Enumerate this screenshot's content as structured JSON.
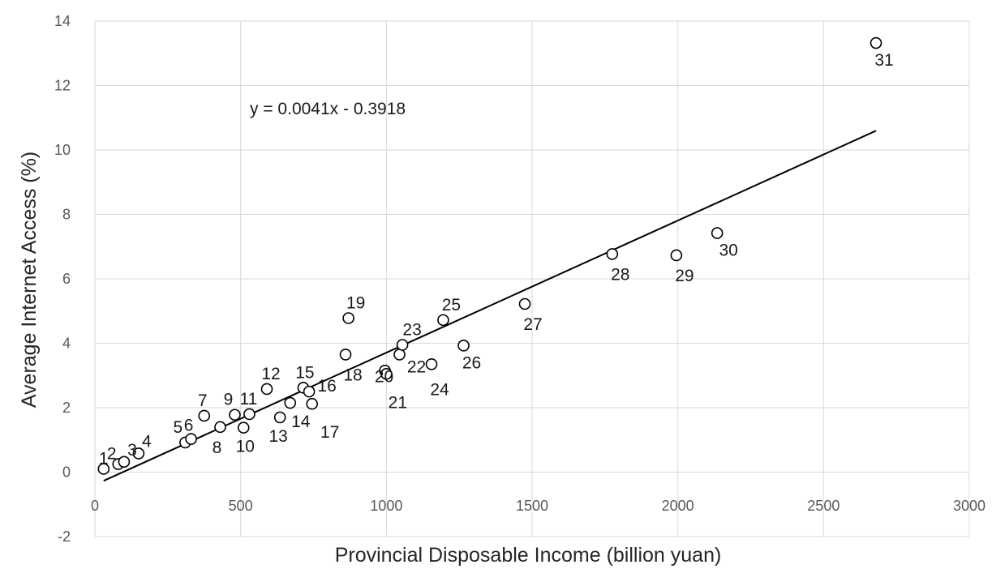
{
  "chart_data": {
    "type": "scatter",
    "xlabel": "Provincial Disposable Income (billion yuan)",
    "ylabel": "Average Internet Access (%)",
    "xlim": [
      0,
      3000
    ],
    "ylim": [
      -2,
      14
    ],
    "xticks": [
      0,
      500,
      1000,
      1500,
      2000,
      2500,
      3000
    ],
    "yticks": [
      -2,
      0,
      2,
      4,
      6,
      8,
      10,
      12,
      14
    ],
    "grid": true,
    "legend": "none",
    "colors": {
      "marker": "#000000",
      "trendline": "#000000",
      "grid": "#d9d9d9"
    },
    "trendline": {
      "equation": "y = 0.0041x - 0.3918",
      "slope": 0.0041,
      "intercept": -0.3918,
      "x_range": [
        30,
        2680
      ]
    },
    "points": [
      {
        "label": "1",
        "x": 30,
        "y": 0.1
      },
      {
        "label": "2",
        "x": 80,
        "y": 0.25
      },
      {
        "label": "3",
        "x": 100,
        "y": 0.32
      },
      {
        "label": "4",
        "x": 150,
        "y": 0.58
      },
      {
        "label": "5",
        "x": 310,
        "y": 0.92
      },
      {
        "label": "6",
        "x": 330,
        "y": 1.03
      },
      {
        "label": "7",
        "x": 375,
        "y": 1.75
      },
      {
        "label": "8",
        "x": 430,
        "y": 1.4
      },
      {
        "label": "9",
        "x": 480,
        "y": 1.78
      },
      {
        "label": "10",
        "x": 510,
        "y": 1.38
      },
      {
        "label": "11",
        "x": 530,
        "y": 1.8
      },
      {
        "label": "12",
        "x": 590,
        "y": 2.58
      },
      {
        "label": "13",
        "x": 635,
        "y": 1.7
      },
      {
        "label": "14",
        "x": 670,
        "y": 2.15
      },
      {
        "label": "15",
        "x": 715,
        "y": 2.62
      },
      {
        "label": "16",
        "x": 735,
        "y": 2.5
      },
      {
        "label": "17",
        "x": 745,
        "y": 2.12
      },
      {
        "label": "18",
        "x": 860,
        "y": 3.65
      },
      {
        "label": "19",
        "x": 870,
        "y": 4.78
      },
      {
        "label": "20",
        "x": 995,
        "y": 3.15
      },
      {
        "label": "21",
        "x": 1000,
        "y": 3.05
      },
      {
        "label": "22",
        "x": 1045,
        "y": 3.65
      },
      {
        "label": "23",
        "x": 1055,
        "y": 3.95
      },
      {
        "label": "24",
        "x": 1155,
        "y": 3.35
      },
      {
        "label": "25",
        "x": 1195,
        "y": 4.72
      },
      {
        "label": "26",
        "x": 1265,
        "y": 3.93
      },
      {
        "label": "27",
        "x": 1475,
        "y": 5.22
      },
      {
        "label": "28",
        "x": 1775,
        "y": 6.77
      },
      {
        "label": "29",
        "x": 1995,
        "y": 6.73
      },
      {
        "label": "30",
        "x": 2135,
        "y": 7.42
      },
      {
        "label": "31",
        "x": 2680,
        "y": 13.32
      }
    ]
  }
}
